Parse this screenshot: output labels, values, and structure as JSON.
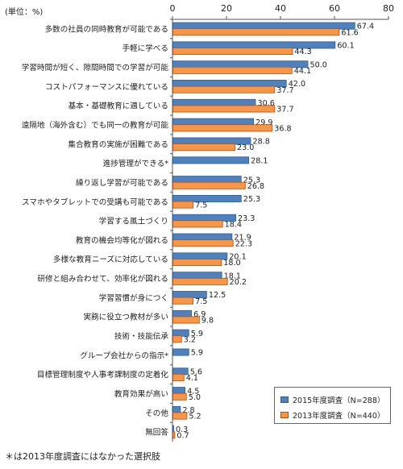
{
  "chart_data": {
    "type": "bar",
    "orientation": "horizontal",
    "unit_label": "(単位：%)",
    "xlim": [
      0,
      80
    ],
    "x_ticks": [
      0,
      20,
      40,
      60,
      80
    ],
    "categories": [
      "多数の社員の同時教育が可能である",
      "手軽に学べる",
      "学習時間が短く、隙間時間での学習が可能",
      "コストパフォーマンスに優れている",
      "基本・基礎教育に適している",
      "遠隔地（海外含む）でも同一の教育が可能",
      "集合教育の実施が困難である",
      "進捗管理ができる*",
      "繰り返し学習が可能である",
      "スマホやタブレットでの受講も可能である",
      "学習する風土づくり",
      "教育の機会均等化が図れる",
      "多様な教育ニーズに対応している",
      "研修と組み合わせて、効率化が図れる",
      "学習習慣が身につく",
      "実務に役立つ教材が多い",
      "技術・技能伝承",
      "グループ会社からの指示*",
      "目標管理制度や人事考課制度の定着化",
      "教育効果が高い",
      "その他",
      "無回答"
    ],
    "series": [
      {
        "name": "2015年度調査（N=288）",
        "color": "#4F81BD",
        "values": [
          67.4,
          60.1,
          50.0,
          42.0,
          30.6,
          29.9,
          28.8,
          28.1,
          25.3,
          25.3,
          23.3,
          21.9,
          20.1,
          18.1,
          12.5,
          6.9,
          5.9,
          5.9,
          5.6,
          4.5,
          2.8,
          0.3
        ],
        "labels": [
          "67.4",
          "60.1",
          "50.0",
          "42.0",
          "30.6",
          "29.9",
          "28.8",
          "28.1",
          "25.3",
          "25.3",
          "23.3",
          "21.9",
          "20.1",
          "18.1",
          "12.5",
          "6.9",
          "5.9",
          "5.9",
          "5.6",
          "4.5",
          "2.8",
          "0.3"
        ]
      },
      {
        "name": "2013年度調査（N=440）",
        "color": "#F79646",
        "values": [
          61.6,
          44.3,
          44.1,
          37.7,
          37.7,
          36.8,
          23.0,
          null,
          26.8,
          7.5,
          18.4,
          22.3,
          18.0,
          20.2,
          7.5,
          9.8,
          3.2,
          null,
          4.1,
          5.0,
          5.2,
          0.7
        ],
        "labels": [
          "61.6",
          "44.3",
          "44.1",
          "37.7",
          "37.7",
          "36.8",
          "23.0",
          "",
          "26.8",
          "7.5",
          "18.4",
          "22.3",
          "18.0",
          "20.2",
          "7.5",
          "9.8",
          "3.2",
          "",
          "4.1",
          "5.0",
          "5.2",
          "0.7"
        ]
      }
    ],
    "footnote": "＊は2013年度調査にはなかった選択肢"
  }
}
